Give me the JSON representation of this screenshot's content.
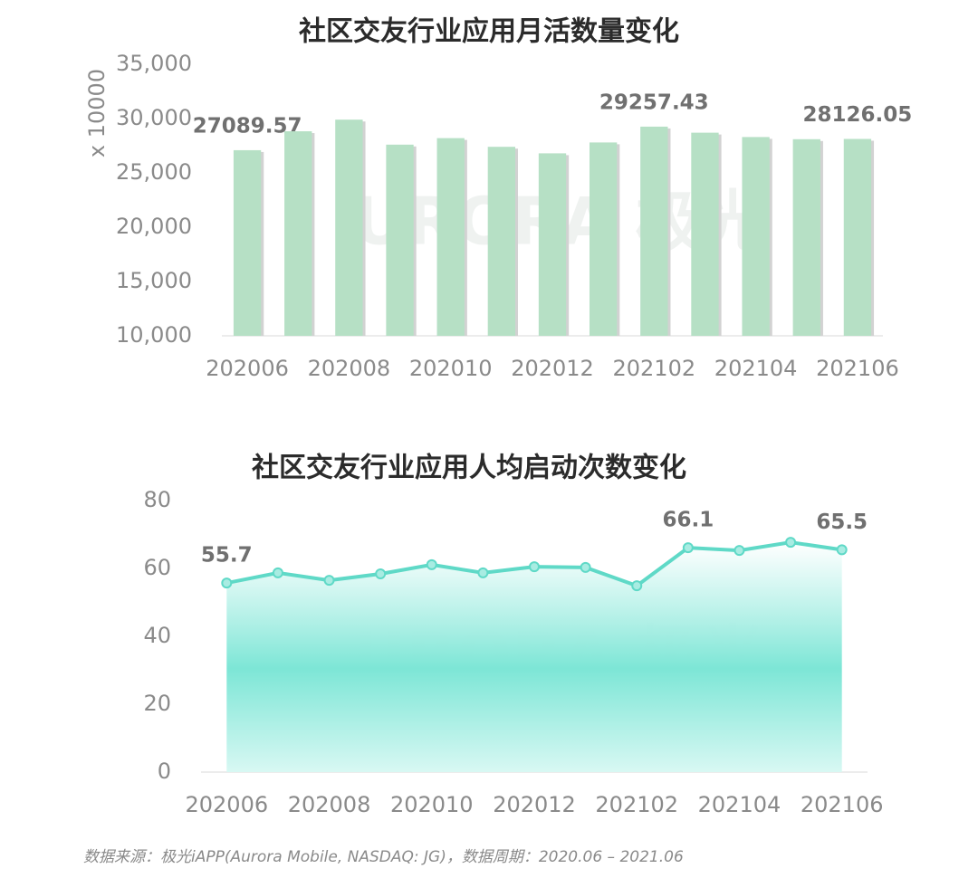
{
  "chart_data": [
    {
      "type": "bar",
      "title": "社区交友行业应用月活数量变化",
      "y_label": "x 10000",
      "categories": [
        "202006",
        null,
        "202008",
        null,
        "202010",
        null,
        "202012",
        null,
        "202102",
        null,
        "202104",
        null,
        "202106"
      ],
      "values": [
        27089.57,
        28830,
        29900,
        27600,
        28200,
        27400,
        26800,
        27800,
        29257.43,
        28700,
        28300,
        28100,
        28126.05
      ],
      "value_labels": [
        "27089.57",
        null,
        null,
        null,
        null,
        null,
        null,
        null,
        "29257.43",
        null,
        null,
        null,
        "28126.05"
      ],
      "color": "#b6e0c5",
      "ylim": [
        10000,
        35000
      ],
      "yticks": [
        {
          "value": 10000,
          "label": "10,000"
        },
        {
          "value": 15000,
          "label": "15,000"
        },
        {
          "value": 20000,
          "label": "20,000"
        },
        {
          "value": 25000,
          "label": "25,000"
        },
        {
          "value": 30000,
          "label": "30,000"
        },
        {
          "value": 35000,
          "label": "35,000"
        }
      ],
      "watermark": "URORA 极光"
    },
    {
      "type": "area",
      "title": "社区交友行业应用人均启动次数变化",
      "categories": [
        "202006",
        null,
        "202008",
        null,
        "202010",
        null,
        "202012",
        null,
        "202102",
        null,
        "202104",
        null,
        "202106"
      ],
      "values": [
        55.7,
        58.7,
        56.5,
        58.4,
        61.1,
        58.7,
        60.5,
        60.3,
        54.9,
        66.1,
        65.3,
        67.7,
        65.5
      ],
      "value_labels": [
        "55.7",
        null,
        null,
        null,
        null,
        null,
        null,
        null,
        null,
        "66.1",
        null,
        null,
        "65.5"
      ],
      "color": "#5fd9c7",
      "ylim": [
        0,
        80
      ],
      "yticks": [
        0,
        20,
        40,
        60,
        80
      ],
      "watermark": "URORA 极光"
    }
  ],
  "source": "数据来源：极光iAPP(Aurora Mobile, NASDAQ: JG)，数据周期：2020.06 – 2021.06"
}
